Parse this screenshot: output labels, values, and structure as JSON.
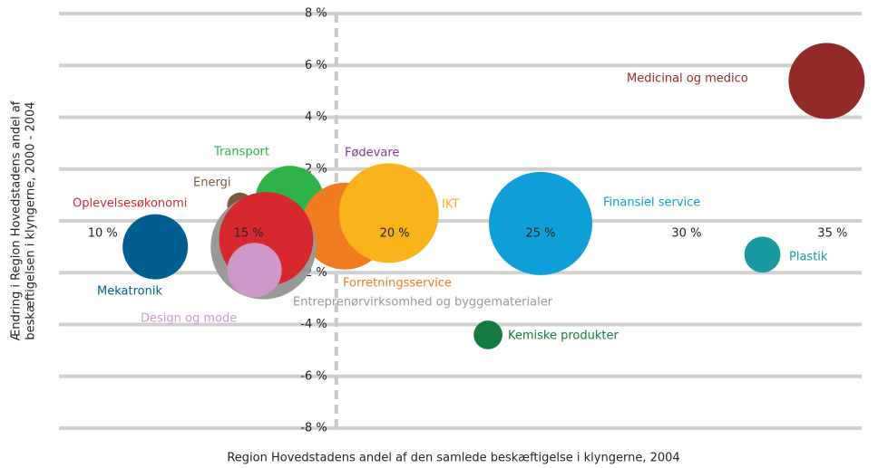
{
  "chart_data": {
    "type": "scatter",
    "xlabel": "Region Hovedstadens andel af den samlede beskæftigelse i klyngerne, 2004",
    "ylabel": [
      "Ændring i Region Hovedstadens andel af",
      "beskæftigelsen i klyngerne, 2000 - 2004"
    ],
    "xlim": [
      8.5,
      36
    ],
    "ylim": [
      -8,
      8
    ],
    "xticks": [
      {
        "value": 10,
        "label": "10 %"
      },
      {
        "value": 15,
        "label": "15 %"
      },
      {
        "value": 20,
        "label": "20 %"
      },
      {
        "value": 25,
        "label": "25 %"
      },
      {
        "value": 30,
        "label": "30 %"
      },
      {
        "value": 35,
        "label": "35 %"
      }
    ],
    "yticks": [
      {
        "value": -8,
        "label": "-8 %"
      },
      {
        "value": -6,
        "label": "-6 %"
      },
      {
        "value": -4,
        "label": "-4 %"
      },
      {
        "value": -2,
        "label": "-2 %"
      },
      {
        "value": 0,
        "label": "0 %"
      },
      {
        "value": 2,
        "label": "2 %"
      },
      {
        "value": 4,
        "label": "4 %"
      },
      {
        "value": 6,
        "label": "6 %"
      },
      {
        "value": 8,
        "label": "8 %"
      }
    ],
    "grid": true,
    "xline": 18,
    "points": [
      {
        "name": "Medicinal og medico",
        "color": "#922a27",
        "x": 34.8,
        "y": 5.4,
        "size": 196
      },
      {
        "name": "Finansiel service",
        "color": "#0f9fd8",
        "x": 25.0,
        "y": -0.1,
        "size": 361
      },
      {
        "name": "Plastik",
        "color": "#1a9aa0",
        "x": 32.6,
        "y": -1.3,
        "size": 44
      },
      {
        "name": "Kemiske produkter",
        "color": "#137a40",
        "x": 23.2,
        "y": -4.4,
        "size": 28
      },
      {
        "name": "Mekatronik",
        "color": "#005d8f",
        "x": 11.8,
        "y": -1.0,
        "size": 144
      },
      {
        "name": "Transport",
        "color": "#2db34a",
        "x": 16.4,
        "y": 0.8,
        "size": 160
      },
      {
        "name": "Fødevare",
        "color": "#7d3b96",
        "x": 17.5,
        "y": -0.2,
        "size": 69
      },
      {
        "name": "Forretningsservice",
        "color": "#f07c22",
        "x": 18.3,
        "y": -0.2,
        "size": 256
      },
      {
        "name": "IKT",
        "color": "#f8b21a",
        "x": 19.8,
        "y": 0.3,
        "size": 336
      },
      {
        "name": "Energi",
        "color": "#7a5a3c",
        "x": 14.7,
        "y": 0.6,
        "size": 22
      },
      {
        "name": "Entreprenørvirksomhed og byggematerialer",
        "color": "#999999",
        "x": 15.5,
        "y": -1.0,
        "size": 374
      },
      {
        "name": "Oplevelsesøkonomi",
        "color": "#d7282f",
        "x": 15.6,
        "y": -0.7,
        "size": 300
      },
      {
        "name": "Design og mode",
        "color": "#cc99c9",
        "x": 15.2,
        "y": -1.9,
        "size": 100
      }
    ]
  }
}
